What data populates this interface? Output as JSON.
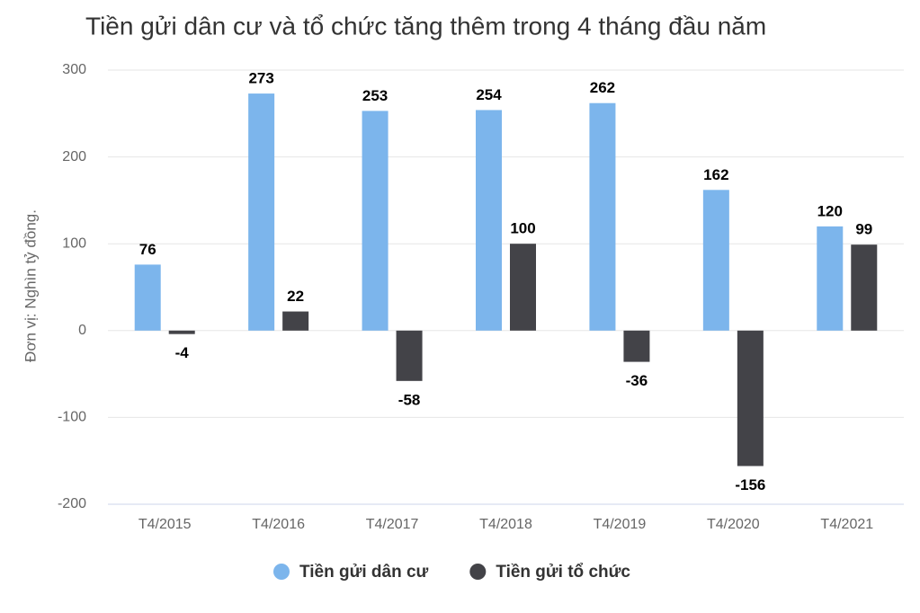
{
  "chart_data": {
    "type": "bar",
    "title": "Tiền gửi dân cư và tổ chức tăng thêm trong 4 tháng đầu năm",
    "y_axis_label": "Đơn vị: Nghìn tỷ đồng.",
    "categories": [
      "T4/2015",
      "T4/2016",
      "T4/2017",
      "T4/2018",
      "T4/2019",
      "T4/2020",
      "T4/2021"
    ],
    "series": [
      {
        "name": "Tiền gửi dân cư",
        "color": "#7cb5ec",
        "values": [
          76,
          273,
          253,
          254,
          262,
          162,
          120
        ]
      },
      {
        "name": "Tiền gửi tổ chức",
        "color": "#434348",
        "values": [
          -4,
          22,
          -58,
          100,
          -36,
          -156,
          99
        ]
      }
    ],
    "ylim": [
      -200,
      300
    ],
    "yticks": [
      -200,
      -100,
      0,
      100,
      200,
      300
    ],
    "grid": true,
    "legend": "bottom"
  }
}
